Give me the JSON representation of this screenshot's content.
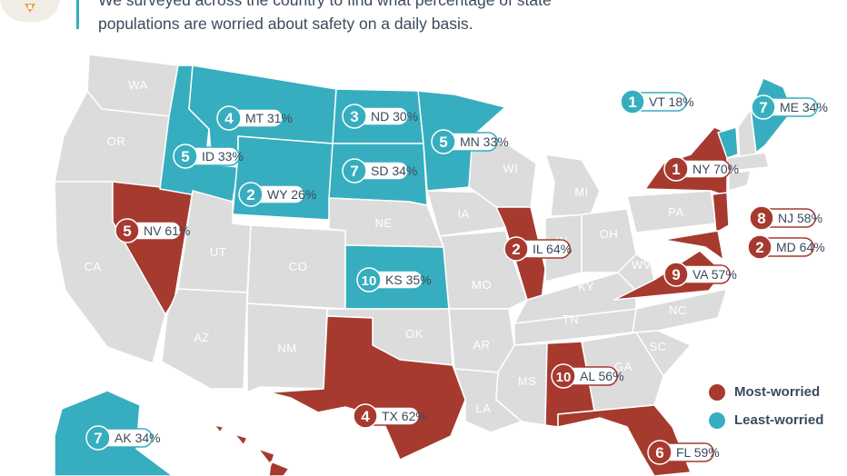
{
  "intro": {
    "line1": "We surveyed across the country to find what percentage of state",
    "line2": "populations are worried about safety on a daily basis."
  },
  "colors": {
    "most": "#a63a2f",
    "least": "#36aebf",
    "neutral": "#dcdcdc",
    "text": "#3b4a5c"
  },
  "legend": {
    "most": "Most-worried",
    "least": "Least-worried"
  },
  "unlabeled_states": [
    "WA",
    "OR",
    "CA",
    "UT",
    "CO",
    "AZ",
    "NM",
    "OK",
    "NE",
    "IA",
    "MO",
    "AR",
    "LA",
    "MS",
    "TN",
    "KY",
    "IN",
    "OH",
    "MI",
    "WI",
    "WV",
    "PA",
    "NC",
    "SC",
    "GA"
  ],
  "badges": [
    {
      "rank": "4",
      "label": "MT 31%",
      "group": "least"
    },
    {
      "rank": "3",
      "label": "ND 30%",
      "group": "least"
    },
    {
      "rank": "5",
      "label": "MN 33%",
      "group": "least"
    },
    {
      "rank": "5",
      "label": "ID 33%",
      "group": "least"
    },
    {
      "rank": "7",
      "label": "SD 34%",
      "group": "least"
    },
    {
      "rank": "2",
      "label": "WY 26%",
      "group": "least"
    },
    {
      "rank": "1",
      "label": "VT 18%",
      "group": "least"
    },
    {
      "rank": "7",
      "label": "ME 34%",
      "group": "least"
    },
    {
      "rank": "10",
      "label": "KS 35%",
      "group": "least"
    },
    {
      "rank": "7",
      "label": "AK 34%",
      "group": "least"
    },
    {
      "rank": "1",
      "label": "NY 70%",
      "group": "most"
    },
    {
      "rank": "8",
      "label": "NJ 58%",
      "group": "most"
    },
    {
      "rank": "2",
      "label": "MD 64%",
      "group": "most"
    },
    {
      "rank": "9",
      "label": "VA 57%",
      "group": "most"
    },
    {
      "rank": "5",
      "label": "NV 61%",
      "group": "most"
    },
    {
      "rank": "2",
      "label": "IL 64%",
      "group": "most"
    },
    {
      "rank": "4",
      "label": "TX 62%",
      "group": "most"
    },
    {
      "rank": "10",
      "label": "AL 56%",
      "group": "most"
    },
    {
      "rank": "6",
      "label": "FL 59%",
      "group": "most"
    }
  ]
}
